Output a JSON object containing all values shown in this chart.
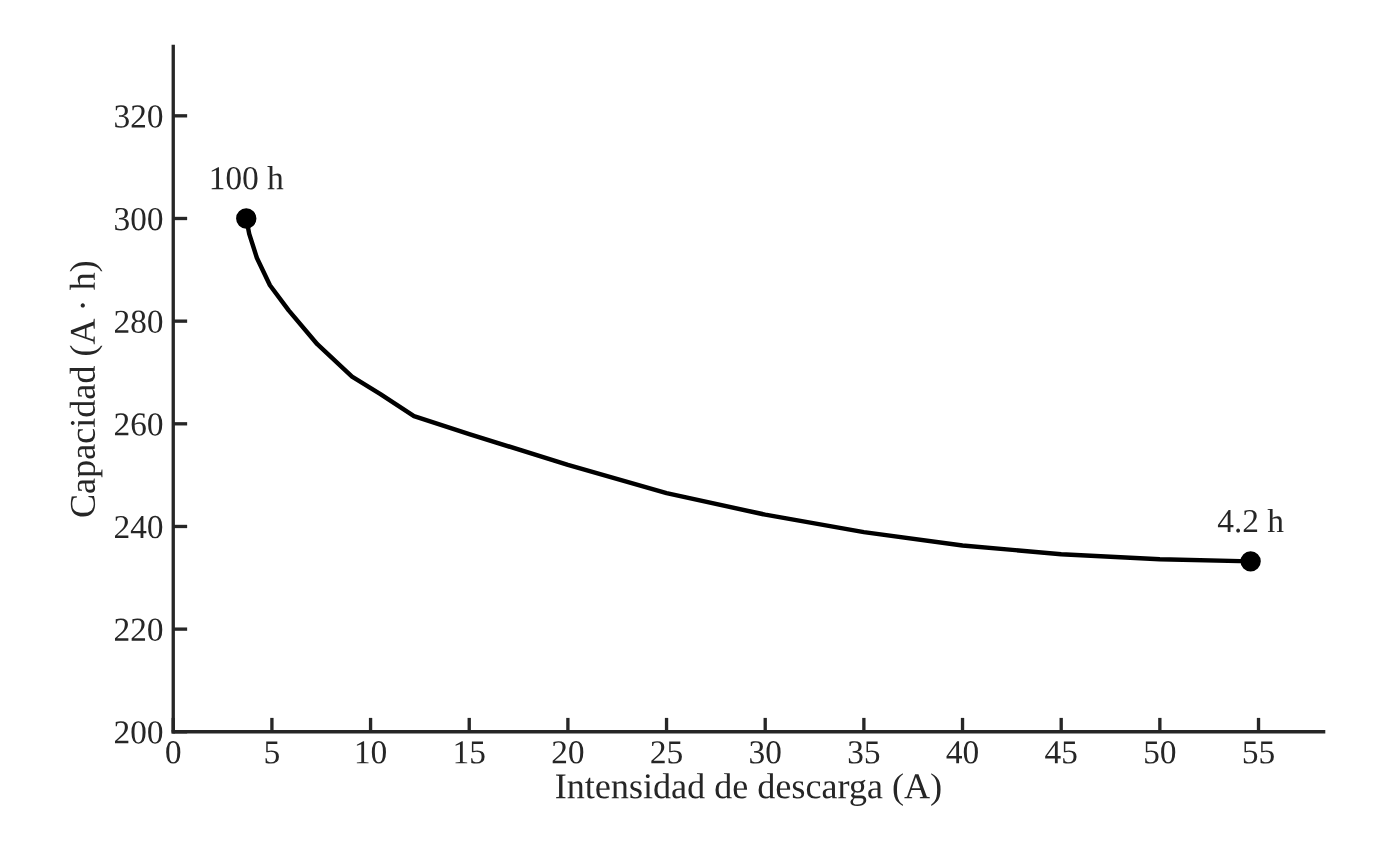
{
  "chart_data": {
    "type": "line",
    "xlabel": "Intensidad de descarga (A)",
    "ylabel": "Capacidad (A · h)",
    "series": [
      {
        "color": "#000000",
        "x": [
          3.7,
          3.85,
          4.24,
          4.9,
          5.85,
          7.3,
          9.06,
          10.5,
          12.2,
          15,
          20,
          25,
          30,
          35,
          40,
          45,
          50,
          54.6
        ],
        "values": [
          300,
          297,
          292.3,
          287,
          282.1,
          275.5,
          269.2,
          265.8,
          261.5,
          258,
          252,
          246.5,
          242.3,
          238.9,
          236.3,
          234.6,
          233.6,
          233.2
        ]
      },
      {
        "type": "scatter",
        "color": "#000000",
        "marker": "circle",
        "x": [
          3.7,
          54.6
        ],
        "values": [
          300,
          233.2
        ]
      }
    ],
    "annotations": [
      {
        "text": "100 h",
        "x": 3.7,
        "y": 300
      },
      {
        "text": "4.2 h",
        "x": 54.6,
        "y": 233.2
      }
    ],
    "xlim": [
      0,
      58.3
    ],
    "xticks": [
      0,
      5,
      10,
      15,
      20,
      25,
      30,
      35,
      40,
      45,
      50,
      55
    ],
    "ylim": [
      200,
      333.5
    ],
    "yticks": [
      200,
      220,
      240,
      260,
      280,
      300,
      320
    ],
    "grid": false,
    "legend": false
  }
}
